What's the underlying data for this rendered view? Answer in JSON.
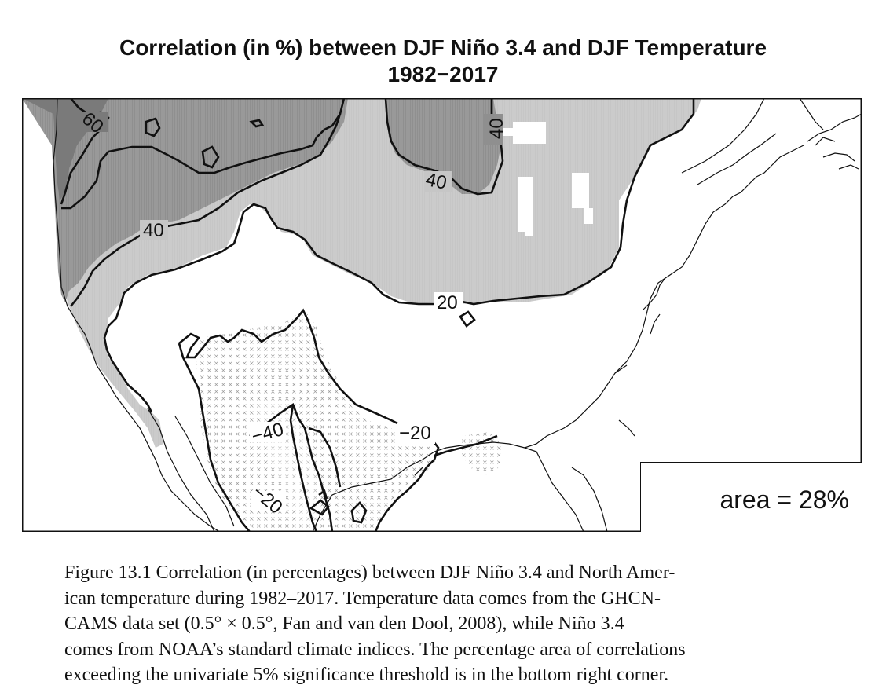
{
  "figure": {
    "title_line1": "Correlation (in %) between DJF Niño 3.4 and DJF Temperature",
    "title_line2": "1982−2017",
    "contour_labels": {
      "northwest_60": "60",
      "northwest_40": "40",
      "north_40_vertical": "40",
      "north_40": "40",
      "central_20": "20",
      "south_minus_20": "−20",
      "south_minus_40": "−40",
      "southwest_minus_20": "−20"
    },
    "area_label": "area = 28%",
    "colors": {
      "corr_above_40": "#8e8e8e",
      "corr_20_to_40": "#c4c4c4",
      "significant_negative_stipple": "#9a9a9a",
      "contour": "#111111"
    }
  },
  "caption": {
    "line1": "Figure 13.1  Correlation (in percentages) between DJF Niño 3.4 and North Amer-",
    "line2": "ican temperature during 1982–2017. Temperature data comes from the GHCN-",
    "line3": "CAMS data set (0.5° × 0.5°, Fan and van den Dool, 2008), while Niño 3.4",
    "line4": "comes from NOAA’s standard climate indices. The percentage area of correlations",
    "line5": "exceeding the univariate 5% significance threshold is in the bottom right corner."
  }
}
